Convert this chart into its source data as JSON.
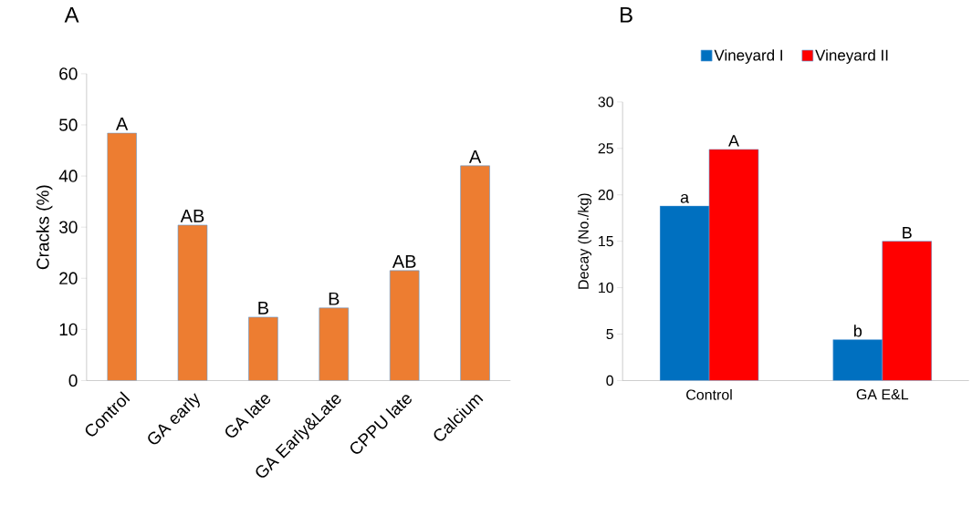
{
  "chart_data": [
    {
      "type": "bar",
      "title": "A",
      "ylabel": "Cracks (%)",
      "categories": [
        "Control",
        "GA early",
        "GA late",
        "GA Early&Late",
        "CPPU late",
        "Calcium"
      ],
      "values": [
        48.4,
        30.4,
        12.4,
        14.2,
        21.5,
        42.0
      ],
      "color": "#ed7d31",
      "ylim": [
        0,
        60
      ],
      "yticks": [
        0,
        10,
        20,
        30,
        40,
        50,
        60
      ],
      "annotations": [
        {
          "text": "A",
          "x": "Control",
          "y": 48.4
        },
        {
          "text": "AB",
          "x": "GA early",
          "y": 30.4
        },
        {
          "text": "B",
          "x": "GA late",
          "y": 12.4
        },
        {
          "text": "B",
          "x": "GA Early&Late",
          "y": 14.2
        },
        {
          "text": "AB",
          "x": "CPPU late",
          "y": 21.5
        },
        {
          "text": "A",
          "x": "Calcium",
          "y": 42.0
        }
      ]
    },
    {
      "type": "bar",
      "title": "B",
      "ylabel": "Decay (No./kg)",
      "categories": [
        "Control",
        "GA E&L"
      ],
      "series": [
        {
          "name": "Vineyard I",
          "color": "#0070c0",
          "values": [
            18.8,
            4.4
          ]
        },
        {
          "name": "Vineyard II",
          "color": "#ff0000",
          "values": [
            24.9,
            15.0
          ]
        }
      ],
      "ylim": [
        0,
        30
      ],
      "yticks": [
        0,
        5,
        10,
        15,
        20,
        25,
        30
      ],
      "legend": "top",
      "annotations": [
        {
          "text": "a",
          "x": "Control",
          "y": 18.8
        },
        {
          "text": "A",
          "x": "Control",
          "y": 24.9
        },
        {
          "text": "b",
          "x": "GA E&L",
          "y": 4.4
        },
        {
          "text": "B",
          "x": "GA E&L",
          "y": 15.0
        }
      ]
    }
  ]
}
